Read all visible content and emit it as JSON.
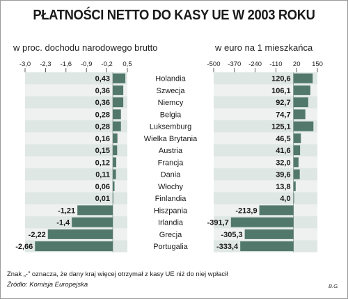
{
  "title": "PŁATNOŚCI NETTO DO KASY UE W 2003 ROKU",
  "colors": {
    "bar": "#52786c",
    "panel": "#dfe7e4",
    "row_band": "#eef1f0",
    "name_box": "#ffffff"
  },
  "chart_data": [
    {
      "type": "bar",
      "orientation": "horizontal",
      "subtitle": "w proc. dochodu narodowego brutto",
      "ticks": [
        "-3,0",
        "-2,3",
        "-1,6",
        "-0,9",
        "-0,2",
        "0,5"
      ],
      "xlim": [
        -3.0,
        0.5
      ],
      "categories": [
        "Holandia",
        "Szwecja",
        "Niemcy",
        "Belgia",
        "Luksemburg",
        "Wielka Brytania",
        "Austria",
        "Francja",
        "Dania",
        "Włochy",
        "Finlandia",
        "Hiszpania",
        "Irlandia",
        "Grecja",
        "Portugalia"
      ],
      "values": [
        0.43,
        0.36,
        0.36,
        0.28,
        0.28,
        0.16,
        0.15,
        0.12,
        0.11,
        0.06,
        0.01,
        -1.21,
        -1.4,
        -2.22,
        -2.66
      ],
      "labels": [
        "0,43",
        "0,36",
        "0,36",
        "0,28",
        "0,28",
        "0,16",
        "0,15",
        "0,12",
        "0,11",
        "0,06",
        "0,01",
        "-1,21",
        "-1,4",
        "-2,22",
        "-2,66"
      ]
    },
    {
      "type": "bar",
      "orientation": "horizontal",
      "subtitle": "w euro na 1 mieszkańca",
      "ticks": [
        "-500",
        "-370",
        "-240",
        "-110",
        "20",
        "150"
      ],
      "xlim": [
        -500,
        150
      ],
      "categories": [
        "Holandia",
        "Szwecja",
        "Niemcy",
        "Belgia",
        "Luksemburg",
        "Wielka Brytania",
        "Austria",
        "Francja",
        "Dania",
        "Włochy",
        "Finlandia",
        "Hiszpania",
        "Irlandia",
        "Grecja",
        "Portugalia"
      ],
      "values": [
        120.6,
        106.1,
        92.7,
        74.7,
        125.1,
        46.5,
        41.6,
        32.0,
        39.6,
        13.8,
        4.0,
        -213.9,
        -391.7,
        -305.3,
        -333.4
      ],
      "labels": [
        "120,6",
        "106,1",
        "92,7",
        "74,7",
        "125,1",
        "46,5",
        "41,6",
        "32,0",
        "39,6",
        "13,8",
        "4,0",
        "-213,9",
        "-391,7",
        "-305,3",
        "-333,4"
      ]
    }
  ],
  "footnote": "Znak „-” oznacza, że dany kraj więcej otrzymał z kasy UE niż do niej wpłacił",
  "source": "Źródło: Komisja Europejska",
  "initials": "B.G."
}
